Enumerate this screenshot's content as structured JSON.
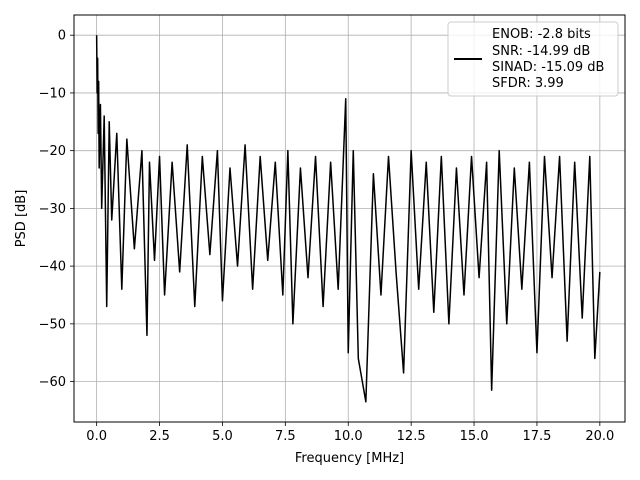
{
  "chart_data": {
    "type": "line",
    "title": "",
    "xlabel": "Frequency [MHz]",
    "ylabel": "PSD [dB]",
    "xlim": [
      -0.9,
      21.0
    ],
    "ylim": [
      -67,
      3.5
    ],
    "xticks": [
      0.0,
      2.5,
      5.0,
      7.5,
      10.0,
      12.5,
      15.0,
      17.5,
      20.0
    ],
    "xtick_labels": [
      "0.0",
      "2.5",
      "5.0",
      "7.5",
      "10.0",
      "12.5",
      "15.0",
      "17.5",
      "20.0"
    ],
    "yticks": [
      0,
      -10,
      -20,
      -30,
      -40,
      -50,
      -60
    ],
    "ytick_labels": [
      "0",
      "−10",
      "−20",
      "−30",
      "−40",
      "−50",
      "−60"
    ],
    "grid": true,
    "legend_position": "top-right",
    "series": [
      {
        "color": "#000000",
        "x": [
          0.0,
          0.02,
          0.04,
          0.06,
          0.08,
          0.1,
          0.15,
          0.2,
          0.3,
          0.4,
          0.5,
          0.6,
          0.8,
          1.0,
          1.2,
          1.5,
          1.8,
          2.0,
          2.1,
          2.3,
          2.5,
          2.7,
          3.0,
          3.3,
          3.6,
          3.9,
          4.2,
          4.5,
          4.8,
          5.0,
          5.3,
          5.6,
          5.9,
          6.2,
          6.5,
          6.8,
          7.1,
          7.4,
          7.6,
          7.8,
          8.1,
          8.4,
          8.7,
          9.0,
          9.3,
          9.6,
          9.9,
          10.0,
          10.2,
          10.4,
          10.7,
          11.0,
          11.3,
          11.6,
          11.9,
          12.2,
          12.5,
          12.8,
          13.1,
          13.4,
          13.7,
          14.0,
          14.3,
          14.6,
          14.9,
          15.2,
          15.5,
          15.7,
          16.0,
          16.3,
          16.6,
          16.9,
          17.2,
          17.5,
          17.8,
          18.1,
          18.4,
          18.7,
          19.0,
          19.3,
          19.6,
          19.8,
          20.0
        ],
        "y": [
          0.0,
          -10.0,
          -4.0,
          -17.0,
          -8.0,
          -23.0,
          -12.0,
          -30.0,
          -14.0,
          -47.0,
          -15.0,
          -32.0,
          -17.0,
          -44.0,
          -18.0,
          -37.0,
          -20.0,
          -52.0,
          -22.0,
          -39.0,
          -21.0,
          -45.0,
          -22.0,
          -41.0,
          -19.0,
          -47.0,
          -21.0,
          -38.0,
          -20.0,
          -46.0,
          -23.0,
          -40.0,
          -19.0,
          -44.0,
          -21.0,
          -39.0,
          -22.0,
          -45.0,
          -20.0,
          -50.0,
          -23.0,
          -42.0,
          -21.0,
          -47.0,
          -22.0,
          -44.0,
          -11.0,
          -55.0,
          -20.0,
          -56.0,
          -63.5,
          -24.0,
          -45.0,
          -21.0,
          -41.0,
          -58.5,
          -20.0,
          -44.0,
          -22.0,
          -48.0,
          -21.0,
          -50.0,
          -23.0,
          -45.0,
          -21.0,
          -42.0,
          -22.0,
          -61.5,
          -20.0,
          -50.0,
          -23.0,
          -44.0,
          -22.0,
          -55.0,
          -21.0,
          -42.0,
          -21.0,
          -53.0,
          -22.0,
          -49.0,
          -21.0,
          -56.0,
          -41.0
        ]
      }
    ],
    "legend": {
      "lines": [
        "ENOB: -2.8 bits",
        "SNR: -14.99 dB",
        "SINAD: -15.09 dB",
        "SFDR: 3.99"
      ]
    }
  }
}
